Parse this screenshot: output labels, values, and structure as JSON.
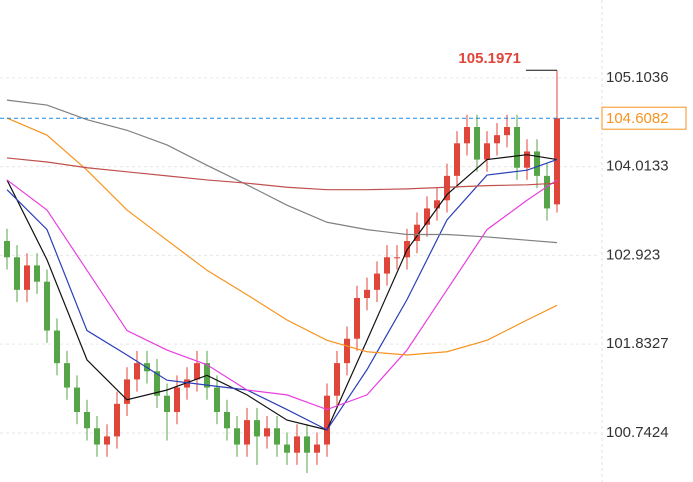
{
  "chart_data": {
    "type": "candlestick",
    "ylim": [
      100.14,
      106.06
    ],
    "yticks": [
      100.7424,
      101.8327,
      102.923,
      104.0133,
      105.1036
    ],
    "grid": true,
    "up_color": "#e0453a",
    "down_color": "#55a447",
    "open": [
      103.1,
      102.9,
      102.5,
      102.8,
      102.6,
      102.0,
      101.6,
      101.3,
      101.0,
      100.8,
      100.6,
      100.7,
      101.1,
      101.4,
      101.6,
      101.5,
      101.2,
      101.0,
      101.3,
      101.4,
      101.6,
      101.3,
      101.0,
      100.8,
      100.6,
      100.9,
      100.7,
      100.8,
      100.6,
      100.5,
      100.7,
      100.5,
      100.6,
      101.2,
      101.6,
      101.9,
      102.4,
      102.5,
      102.7,
      102.9,
      102.9,
      103.1,
      103.3,
      103.5,
      103.6,
      103.9,
      104.3,
      104.5,
      104.1,
      104.3,
      104.4,
      104.5,
      104.0,
      104.2,
      103.9,
      103.55
    ],
    "high": [
      103.25,
      103.05,
      102.95,
      102.95,
      102.75,
      102.15,
      101.75,
      101.45,
      101.15,
      100.95,
      100.85,
      101.25,
      101.55,
      101.75,
      101.75,
      101.65,
      101.35,
      101.45,
      101.55,
      101.75,
      101.75,
      101.45,
      101.15,
      100.95,
      101.05,
      101.05,
      100.95,
      100.95,
      100.75,
      100.85,
      100.85,
      100.75,
      101.35,
      101.75,
      102.05,
      102.55,
      102.65,
      102.85,
      103.05,
      103.05,
      103.25,
      103.45,
      103.65,
      103.75,
      104.05,
      104.45,
      104.65,
      104.65,
      104.45,
      104.55,
      104.65,
      104.65,
      104.35,
      104.35,
      104.05,
      105.1971
    ],
    "low": [
      102.75,
      102.35,
      102.35,
      102.45,
      101.85,
      101.45,
      101.15,
      100.85,
      100.65,
      100.45,
      100.45,
      100.55,
      100.95,
      101.25,
      101.35,
      101.05,
      100.65,
      100.85,
      101.15,
      101.25,
      101.15,
      100.85,
      100.65,
      100.45,
      100.45,
      100.35,
      100.55,
      100.45,
      100.35,
      100.35,
      100.25,
      100.35,
      100.45,
      101.05,
      101.45,
      101.75,
      102.25,
      102.35,
      102.55,
      102.75,
      102.75,
      102.95,
      103.15,
      103.35,
      103.45,
      103.75,
      104.15,
      103.95,
      103.95,
      104.15,
      104.25,
      103.85,
      103.85,
      103.75,
      103.35,
      103.45
    ],
    "close": [
      102.9,
      102.5,
      102.8,
      102.6,
      102.0,
      101.6,
      101.3,
      101.0,
      100.8,
      100.6,
      100.7,
      101.1,
      101.4,
      101.6,
      101.5,
      101.2,
      101.0,
      101.3,
      101.4,
      101.6,
      101.3,
      101.0,
      100.8,
      100.6,
      100.9,
      100.7,
      100.8,
      100.6,
      100.5,
      100.7,
      100.5,
      100.6,
      101.2,
      101.6,
      101.9,
      102.4,
      102.5,
      102.7,
      102.9,
      102.9,
      103.1,
      103.3,
      103.5,
      103.6,
      103.9,
      104.3,
      104.5,
      104.1,
      104.3,
      104.4,
      104.5,
      104.0,
      104.2,
      103.9,
      103.5,
      104.6082
    ],
    "line_x": [
      0,
      4,
      8,
      12,
      16,
      20,
      24,
      28,
      32,
      36,
      40,
      44,
      48,
      52,
      55
    ],
    "lines": [
      {
        "color": "#111111",
        "values": [
          103.85,
          102.87,
          101.64,
          101.15,
          101.27,
          101.45,
          101.21,
          100.9,
          100.78,
          101.88,
          102.99,
          103.67,
          104.1,
          104.16,
          104.1
        ]
      },
      {
        "color": "#2a3fb8",
        "values": [
          103.73,
          103.24,
          102.0,
          101.7,
          101.39,
          101.33,
          101.27,
          101.03,
          100.78,
          101.52,
          102.38,
          103.36,
          103.91,
          103.97,
          104.1
        ]
      },
      {
        "color": "#e83ee0",
        "values": [
          103.85,
          103.48,
          102.74,
          102.0,
          101.76,
          101.58,
          101.27,
          101.21,
          101.03,
          101.21,
          101.76,
          102.5,
          103.24,
          103.6,
          103.85
        ]
      },
      {
        "color": "#f7931e",
        "values": [
          104.61,
          104.4,
          103.97,
          103.48,
          103.11,
          102.74,
          102.44,
          102.13,
          101.88,
          101.74,
          101.7,
          101.74,
          101.88,
          102.13,
          102.31
        ]
      },
      {
        "color": "#808080",
        "values": [
          104.83,
          104.77,
          104.59,
          104.46,
          104.28,
          104.03,
          103.79,
          103.54,
          103.33,
          103.24,
          103.18,
          103.18,
          103.15,
          103.11,
          103.08
        ]
      },
      {
        "color": "#c0504d",
        "values": [
          104.12,
          104.07,
          104.0,
          103.95,
          103.9,
          103.85,
          103.81,
          103.76,
          103.73,
          103.73,
          103.74,
          103.76,
          103.78,
          103.79,
          103.81
        ]
      }
    ],
    "current_price": 104.6082,
    "current_color": "#1e88e5",
    "label_color": "#f7931e",
    "high_label_color": "#e0453a"
  }
}
